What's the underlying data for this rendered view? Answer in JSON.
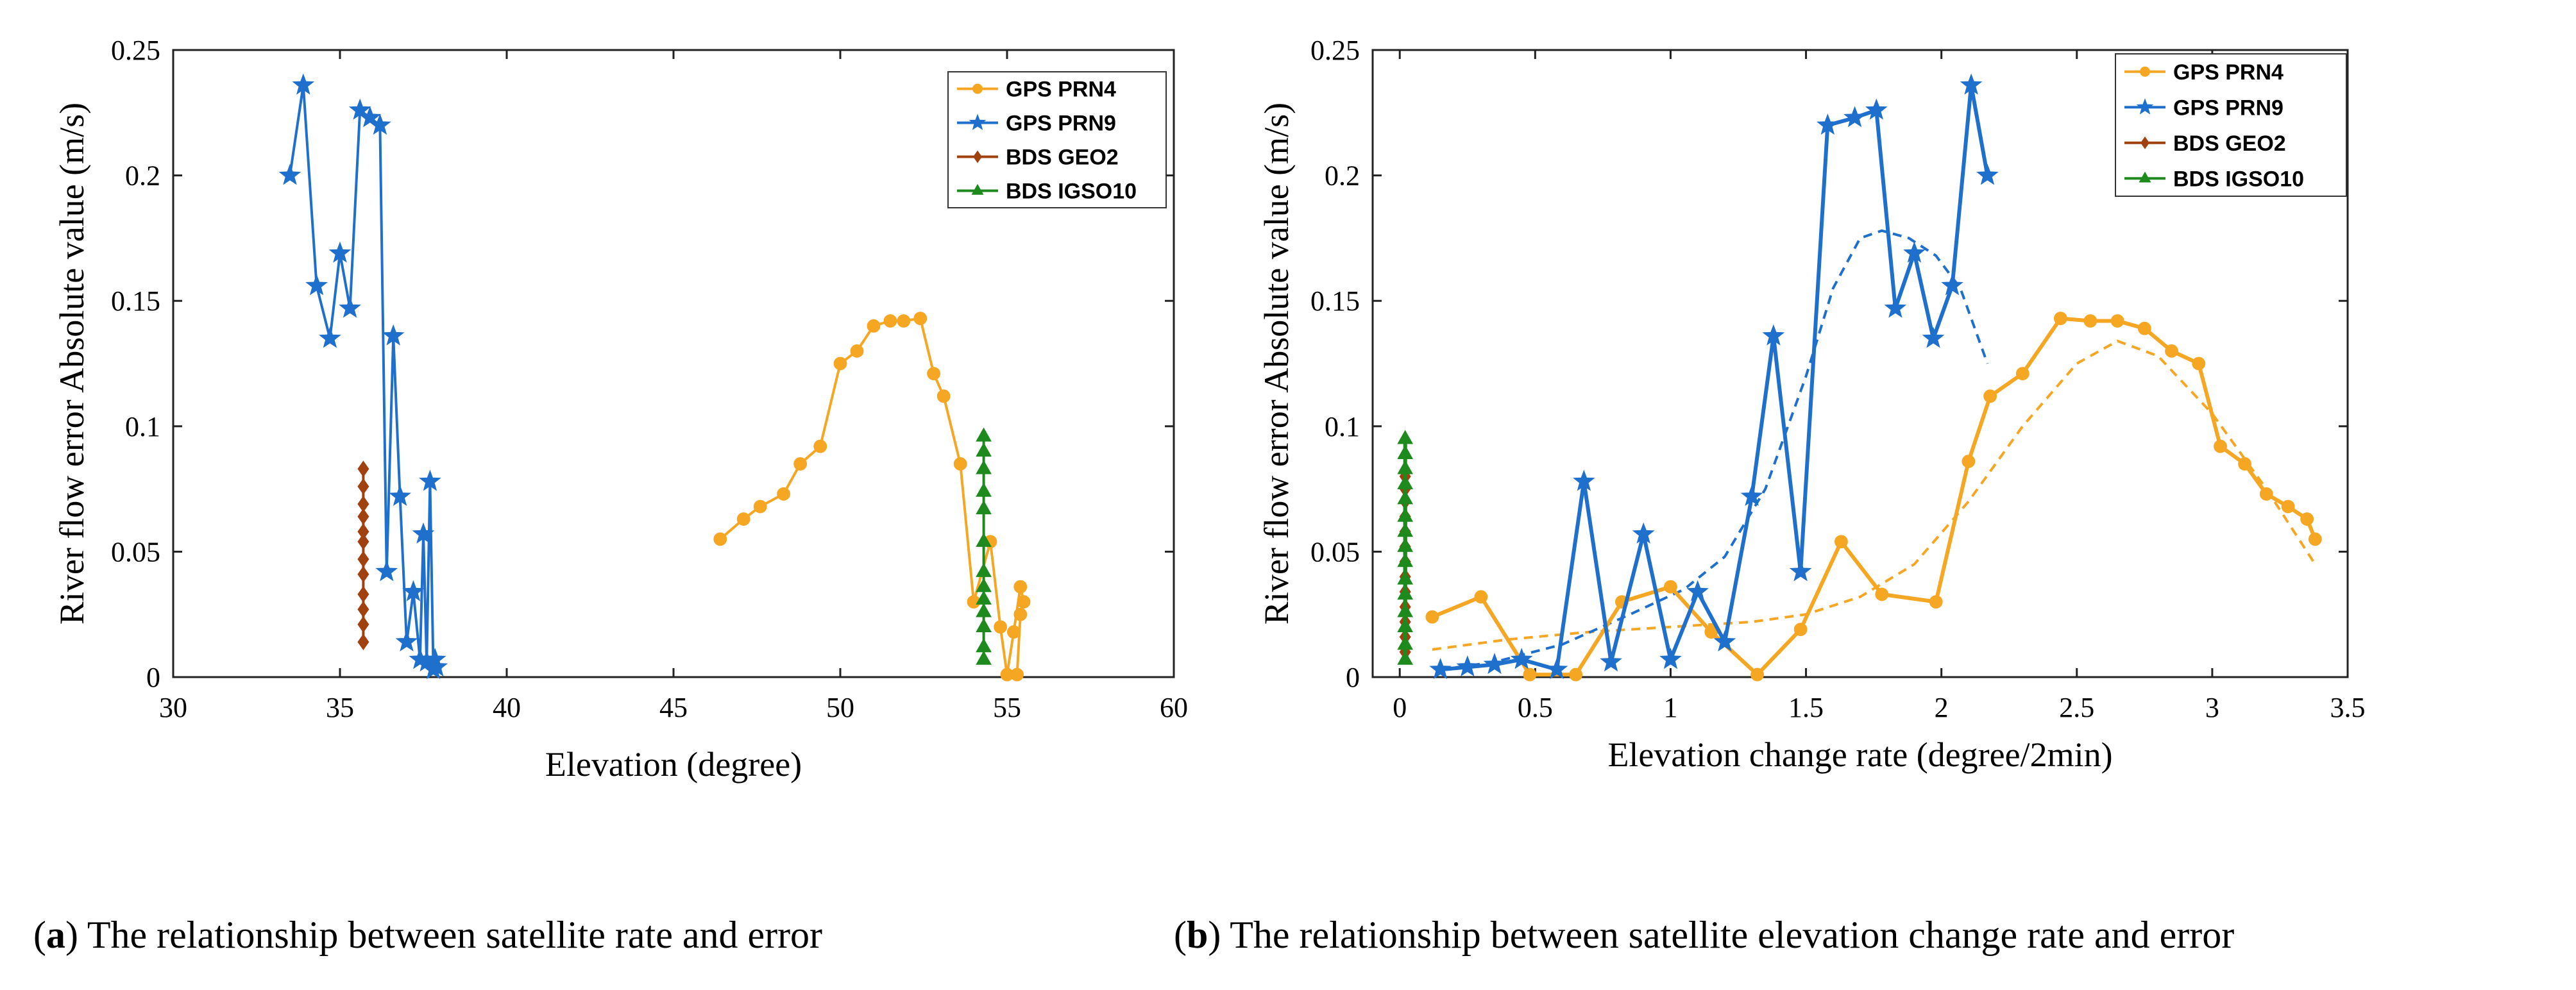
{
  "captions": {
    "a": {
      "letter": "a",
      "text": ") The relationship between satellite rate and error"
    },
    "b": {
      "letter": "b",
      "text": ") The relationship between satellite elevation change rate and error"
    }
  },
  "colors": {
    "PRN4": "#F5A623",
    "PRN9": "#1F6FCC",
    "GEO2": "#A0410F",
    "IGSO10": "#1E8A1E"
  },
  "chart_data": [
    {
      "id": "a",
      "type": "line",
      "title": "",
      "xlabel": "Elevation (degree)",
      "ylabel": "River flow error Absolute value (m/s)",
      "xlim": [
        30,
        60
      ],
      "ylim": [
        0,
        0.25
      ],
      "xticks": [
        30,
        35,
        40,
        45,
        50,
        55,
        60
      ],
      "yticks": [
        0,
        0.05,
        0.1,
        0.15,
        0.2,
        0.25
      ],
      "xtick_labels": [
        "30",
        "35",
        "40",
        "45",
        "50",
        "55",
        "60"
      ],
      "ytick_labels": [
        "0",
        "0.05",
        "0.1",
        "0.15",
        "0.2",
        "0.25"
      ],
      "legend_position": "top-right",
      "series": [
        {
          "name": "GPS PRN4",
          "key": "PRN4",
          "marker": "circle",
          "line_width": 4,
          "x": [
            46.4,
            47.1,
            47.6,
            48.3,
            48.8,
            49.4,
            50.0,
            50.5,
            51.0,
            51.5,
            51.9,
            52.4,
            52.8,
            53.1,
            53.6,
            54.0,
            54.5,
            54.8,
            55.0,
            55.2,
            55.4,
            55.5,
            55.4,
            55.3
          ],
          "y": [
            0.055,
            0.063,
            0.068,
            0.073,
            0.085,
            0.092,
            0.125,
            0.13,
            0.14,
            0.142,
            0.142,
            0.143,
            0.121,
            0.112,
            0.085,
            0.03,
            0.054,
            0.02,
            0.001,
            0.018,
            0.036,
            0.03,
            0.025,
            0.001
          ]
        },
        {
          "name": "GPS PRN9",
          "key": "PRN9",
          "marker": "star",
          "line_width": 4,
          "x": [
            33.5,
            33.9,
            34.3,
            34.7,
            35.0,
            35.3,
            35.6,
            35.9,
            36.2,
            36.4,
            36.6,
            36.8,
            37.0,
            37.2,
            37.4,
            37.5,
            37.6,
            37.7,
            37.8,
            37.85,
            37.9
          ],
          "y": [
            0.2,
            0.236,
            0.156,
            0.135,
            0.169,
            0.147,
            0.226,
            0.223,
            0.22,
            0.042,
            0.136,
            0.072,
            0.014,
            0.034,
            0.007,
            0.057,
            0.006,
            0.078,
            0.003,
            0.007,
            0.004
          ]
        },
        {
          "name": "BDS GEO2",
          "key": "GEO2",
          "marker": "diamond",
          "line_width": 4,
          "x": [
            35.7,
            35.7,
            35.7,
            35.7,
            35.7,
            35.7,
            35.7,
            35.7,
            35.7,
            35.7,
            35.7,
            35.7
          ],
          "y": [
            0.014,
            0.021,
            0.027,
            0.033,
            0.041,
            0.047,
            0.054,
            0.058,
            0.064,
            0.069,
            0.076,
            0.083
          ]
        },
        {
          "name": "BDS IGSO10",
          "key": "IGSO10",
          "marker": "triangle",
          "line_width": 4,
          "x": [
            54.3,
            54.3,
            54.3,
            54.3,
            54.3,
            54.3,
            54.3,
            54.3,
            54.3,
            54.3,
            54.3,
            54.3,
            54.3
          ],
          "y": [
            0.007,
            0.012,
            0.02,
            0.026,
            0.031,
            0.036,
            0.042,
            0.054,
            0.067,
            0.074,
            0.083,
            0.09,
            0.096
          ]
        }
      ]
    },
    {
      "id": "b",
      "type": "line",
      "title": "",
      "xlabel": "Elevation change rate (degree/2min)",
      "ylabel": "River flow error Absolute value (m/s)",
      "xlim": [
        -0.1,
        3.5
      ],
      "ylim": [
        0,
        0.25
      ],
      "xticks": [
        0,
        0.5,
        1,
        1.5,
        2,
        2.5,
        3,
        3.5
      ],
      "yticks": [
        0,
        0.05,
        0.1,
        0.15,
        0.2,
        0.25
      ],
      "xtick_labels": [
        "0",
        "0.5",
        "1",
        "1.5",
        "2",
        "2.5",
        "3",
        "3.5"
      ],
      "ytick_labels": [
        "0",
        "0.05",
        "0.1",
        "0.15",
        "0.2",
        "0.25"
      ],
      "legend_position": "top-right",
      "series": [
        {
          "name": "GPS PRN4",
          "key": "PRN4",
          "marker": "circle",
          "line_width": 6,
          "x": [
            0.12,
            0.3,
            0.48,
            0.65,
            0.82,
            1.0,
            1.15,
            1.32,
            1.48,
            1.63,
            1.78,
            1.98,
            2.1,
            2.18,
            2.3,
            2.44,
            2.55,
            2.65,
            2.75,
            2.85,
            2.95,
            3.03,
            3.12,
            3.2,
            3.28,
            3.35,
            3.38
          ],
          "y": [
            0.024,
            0.032,
            0.001,
            0.001,
            0.03,
            0.036,
            0.018,
            0.001,
            0.019,
            0.054,
            0.033,
            0.03,
            0.086,
            0.112,
            0.121,
            0.143,
            0.142,
            0.142,
            0.139,
            0.13,
            0.125,
            0.092,
            0.085,
            0.073,
            0.068,
            0.063,
            0.055
          ]
        },
        {
          "name": "GPS PRN9",
          "key": "PRN9",
          "marker": "star",
          "line_width": 6,
          "x": [
            0.15,
            0.25,
            0.35,
            0.45,
            0.58,
            0.68,
            0.78,
            0.9,
            1.0,
            1.1,
            1.2,
            1.3,
            1.38,
            1.48,
            1.58,
            1.68,
            1.76,
            1.83,
            1.9,
            1.97,
            2.04,
            2.11,
            2.17
          ],
          "y": [
            0.003,
            0.004,
            0.005,
            0.007,
            0.003,
            0.078,
            0.006,
            0.057,
            0.007,
            0.034,
            0.014,
            0.072,
            0.136,
            0.042,
            0.22,
            0.223,
            0.226,
            0.147,
            0.169,
            0.135,
            0.156,
            0.236,
            0.2
          ]
        },
        {
          "name": "BDS GEO2",
          "key": "GEO2",
          "marker": "diamond",
          "line_width": 6,
          "x": [
            0.02,
            0.02,
            0.02,
            0.02,
            0.02,
            0.02,
            0.02,
            0.02,
            0.02,
            0.02,
            0.02,
            0.02,
            0.02
          ],
          "y": [
            0.01,
            0.016,
            0.022,
            0.028,
            0.034,
            0.04,
            0.046,
            0.052,
            0.058,
            0.064,
            0.07,
            0.075,
            0.08
          ]
        },
        {
          "name": "BDS IGSO10",
          "key": "IGSO10",
          "marker": "triangle",
          "line_width": 6,
          "x": [
            0.02,
            0.02,
            0.02,
            0.02,
            0.02,
            0.02,
            0.02,
            0.02,
            0.02,
            0.02,
            0.02,
            0.02,
            0.02,
            0.02,
            0.02
          ],
          "y": [
            0.007,
            0.013,
            0.02,
            0.026,
            0.033,
            0.039,
            0.046,
            0.052,
            0.058,
            0.064,
            0.071,
            0.077,
            0.083,
            0.089,
            0.095
          ]
        }
      ],
      "trend_lines": [
        {
          "name": "PRN4 fit",
          "key": "PRN4",
          "style": "dashed",
          "x": [
            0.12,
            0.4,
            0.7,
            1.0,
            1.3,
            1.5,
            1.7,
            1.9,
            2.1,
            2.3,
            2.5,
            2.65,
            2.8,
            3.0,
            3.2,
            3.38
          ],
          "y": [
            0.011,
            0.015,
            0.018,
            0.02,
            0.022,
            0.025,
            0.032,
            0.045,
            0.07,
            0.1,
            0.125,
            0.134,
            0.128,
            0.105,
            0.075,
            0.045
          ]
        },
        {
          "name": "PRN9 fit",
          "key": "PRN9",
          "style": "dashed",
          "x": [
            0.15,
            0.35,
            0.6,
            0.85,
            1.05,
            1.2,
            1.35,
            1.5,
            1.6,
            1.7,
            1.78,
            1.88,
            1.98,
            2.07,
            2.17
          ],
          "y": [
            0.003,
            0.006,
            0.013,
            0.025,
            0.035,
            0.048,
            0.075,
            0.12,
            0.155,
            0.175,
            0.178,
            0.175,
            0.168,
            0.155,
            0.125
          ]
        }
      ]
    }
  ]
}
